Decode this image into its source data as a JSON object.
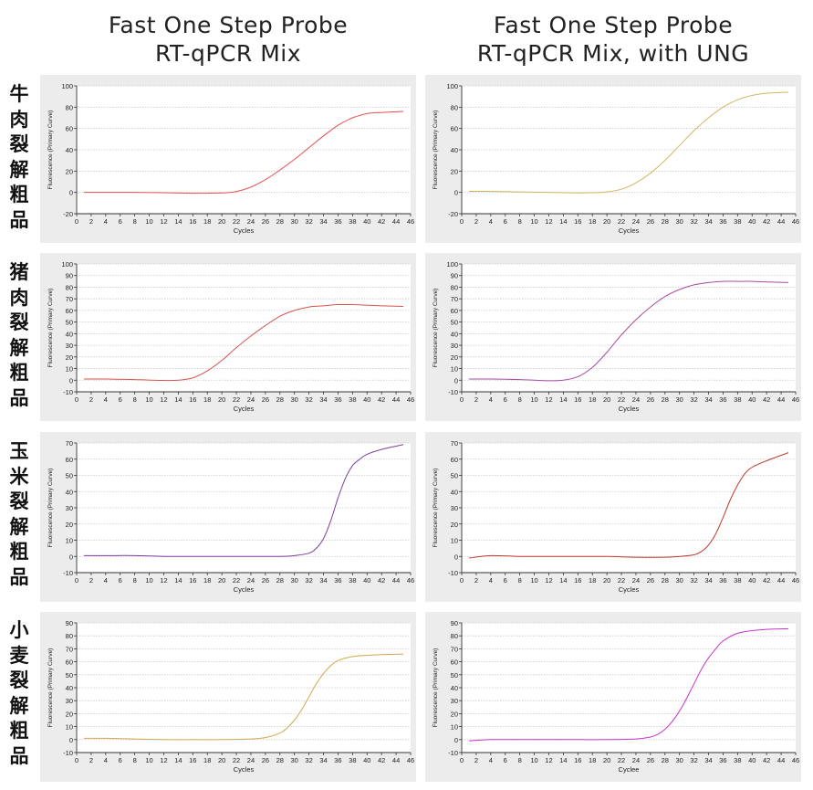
{
  "column_titles": [
    {
      "line1": "Fast One Step Probe",
      "line2": "RT-qPCR Mix"
    },
    {
      "line1": "Fast One Step Probe",
      "line2": "RT-qPCR Mix, with UNG"
    }
  ],
  "row_labels": [
    [
      "牛",
      "肉",
      "裂",
      "解",
      "粗",
      "品"
    ],
    [
      "猪",
      "肉",
      "裂",
      "解",
      "粗",
      "品"
    ],
    [
      "玉",
      "米",
      "裂",
      "解",
      "粗",
      "品"
    ],
    [
      "小",
      "麦",
      "裂",
      "解",
      "粗",
      "品"
    ]
  ],
  "chart_data": [
    {
      "type": "line",
      "row": 0,
      "col": 0,
      "xlabel": "Cycles",
      "ylabel": "Fluorescence (Primary Curve)",
      "xlim": [
        0,
        46
      ],
      "ylim": [
        -20,
        100
      ],
      "ystep": 20,
      "xticks": [
        0,
        2,
        4,
        6,
        8,
        10,
        12,
        14,
        16,
        18,
        20,
        22,
        24,
        26,
        28,
        30,
        32,
        34,
        36,
        38,
        40,
        42,
        44,
        46
      ],
      "grid_y": true,
      "color": "#e8504f",
      "series": [
        {
          "x": [
            1,
            4,
            8,
            12,
            16,
            20,
            22,
            24,
            26,
            28,
            30,
            32,
            34,
            36,
            38,
            40,
            42,
            45
          ],
          "y": [
            0,
            0,
            0,
            -0.3,
            -0.8,
            -0.5,
            0.8,
            5,
            12,
            21,
            31,
            42,
            53,
            63,
            70,
            74,
            75,
            76
          ]
        }
      ]
    },
    {
      "type": "line",
      "row": 0,
      "col": 1,
      "xlabel": "Cycles",
      "ylabel": "Fluorescence (Primary Curve)",
      "xlim": [
        0,
        46
      ],
      "ylim": [
        -20,
        100
      ],
      "ystep": 20,
      "xticks": [
        0,
        2,
        4,
        6,
        8,
        10,
        12,
        14,
        16,
        18,
        20,
        22,
        24,
        26,
        28,
        30,
        32,
        34,
        36,
        38,
        40,
        42,
        44,
        46
      ],
      "grid_y": true,
      "color": "#d7b463",
      "series": [
        {
          "x": [
            1,
            4,
            8,
            12,
            16,
            18,
            20,
            22,
            24,
            26,
            28,
            30,
            32,
            34,
            36,
            38,
            40,
            42,
            45
          ],
          "y": [
            1,
            1,
            0.5,
            0,
            -0.5,
            -0.3,
            0.5,
            3,
            9,
            18,
            30,
            44,
            58,
            70,
            80,
            87,
            91,
            93,
            94
          ]
        }
      ]
    },
    {
      "type": "line",
      "row": 1,
      "col": 0,
      "xlabel": "Cycles",
      "ylabel": "Fluorescence (Primary Curve)",
      "xlim": [
        0,
        46
      ],
      "ylim": [
        -10,
        100
      ],
      "ystep": 10,
      "xticks": [
        0,
        2,
        4,
        6,
        8,
        10,
        12,
        14,
        16,
        18,
        20,
        22,
        24,
        26,
        28,
        30,
        32,
        34,
        36,
        38,
        40,
        42,
        44,
        46
      ],
      "grid_y": true,
      "color": "#d9534f",
      "series": [
        {
          "x": [
            1,
            4,
            8,
            12,
            14,
            16,
            18,
            20,
            22,
            24,
            26,
            28,
            30,
            32,
            34,
            36,
            38,
            40,
            42,
            45
          ],
          "y": [
            1,
            1,
            0.5,
            -0.2,
            0,
            2,
            8,
            17,
            28,
            38,
            47,
            55,
            60,
            63,
            64,
            65,
            65,
            64.5,
            64,
            63.5
          ]
        }
      ]
    },
    {
      "type": "line",
      "row": 1,
      "col": 1,
      "xlabel": "Cycles",
      "ylabel": "Fluorescence (Primary Curve)",
      "xlim": [
        0,
        46
      ],
      "ylim": [
        -10,
        100
      ],
      "ystep": 10,
      "xticks": [
        0,
        2,
        4,
        6,
        8,
        10,
        12,
        14,
        16,
        18,
        20,
        22,
        24,
        26,
        28,
        30,
        32,
        34,
        36,
        38,
        40,
        42,
        44,
        46
      ],
      "grid_y": true,
      "color": "#a94ca3",
      "series": [
        {
          "x": [
            1,
            4,
            8,
            12,
            14,
            16,
            18,
            20,
            22,
            24,
            26,
            28,
            30,
            32,
            34,
            36,
            38,
            40,
            42,
            45
          ],
          "y": [
            1,
            1,
            0.5,
            -0.5,
            0,
            3,
            11,
            24,
            39,
            52,
            63,
            72,
            78,
            82,
            84,
            85,
            85,
            85,
            84.5,
            84
          ]
        }
      ]
    },
    {
      "type": "line",
      "row": 2,
      "col": 0,
      "xlabel": "Cycles",
      "ylabel": "Fluorescence (Primary Curve)",
      "xlim": [
        0,
        46
      ],
      "ylim": [
        -10,
        70
      ],
      "ystep": 10,
      "xticks": [
        0,
        2,
        4,
        6,
        8,
        10,
        12,
        14,
        16,
        18,
        20,
        22,
        24,
        26,
        28,
        30,
        32,
        34,
        36,
        38,
        40,
        42,
        44,
        46
      ],
      "grid_y": true,
      "color": "#7b3f9e",
      "series": [
        {
          "x": [
            1,
            4,
            8,
            12,
            16,
            20,
            24,
            28,
            30,
            32,
            33,
            34,
            35,
            36,
            37,
            38,
            39,
            40,
            42,
            45
          ],
          "y": [
            0.5,
            0.5,
            0.5,
            0,
            0,
            0,
            0,
            0,
            0.5,
            2,
            5,
            11,
            22,
            36,
            48,
            56,
            60,
            63,
            66,
            69
          ]
        }
      ]
    },
    {
      "type": "line",
      "row": 2,
      "col": 1,
      "xlabel": "Cycles",
      "ylabel": "Fluorescence (Primary Curve)",
      "xlim": [
        0,
        46
      ],
      "ylim": [
        -10,
        70
      ],
      "ystep": 10,
      "xticks": [
        0,
        2,
        4,
        6,
        8,
        10,
        12,
        14,
        16,
        18,
        20,
        22,
        24,
        26,
        28,
        30,
        32,
        34,
        36,
        38,
        40,
        42,
        44,
        46
      ],
      "grid_y": true,
      "color": "#c0392b",
      "series": [
        {
          "x": [
            1,
            4,
            8,
            12,
            16,
            20,
            24,
            28,
            30,
            32,
            33,
            34,
            35,
            36,
            37,
            38,
            39,
            40,
            42,
            45
          ],
          "y": [
            -1,
            0.5,
            0,
            0,
            0,
            0,
            -0.5,
            -0.5,
            0,
            1,
            3,
            7,
            14,
            24,
            35,
            44,
            51,
            55,
            59,
            64
          ]
        }
      ]
    },
    {
      "type": "line",
      "row": 3,
      "col": 0,
      "xlabel": "Cycles",
      "ylabel": "Fluorescence (Primary Curve)",
      "xlim": [
        0,
        46
      ],
      "ylim": [
        -10,
        90
      ],
      "ystep": 10,
      "xticks": [
        0,
        2,
        4,
        6,
        8,
        10,
        12,
        14,
        16,
        18,
        20,
        22,
        24,
        26,
        28,
        30,
        32,
        34,
        36,
        38,
        40,
        42,
        44,
        46
      ],
      "grid_y": true,
      "color": "#d2a84d",
      "series": [
        {
          "x": [
            1,
            4,
            8,
            12,
            16,
            20,
            24,
            26,
            28,
            29,
            30,
            31,
            32,
            33,
            34,
            35,
            36,
            38,
            40,
            42,
            45
          ],
          "y": [
            1,
            1,
            0.5,
            0,
            0,
            0,
            0.5,
            1.5,
            5,
            9,
            15,
            23,
            33,
            43,
            51,
            57,
            61,
            64,
            65,
            65.5,
            66
          ]
        }
      ]
    },
    {
      "type": "line",
      "row": 3,
      "col": 1,
      "xlabel": "Cyclee",
      "ylabel": "Fluorescence (Primary Curve)",
      "xlim": [
        0,
        46
      ],
      "ylim": [
        -10,
        90
      ],
      "ystep": 10,
      "xticks": [
        0,
        2,
        4,
        6,
        8,
        10,
        12,
        14,
        16,
        18,
        20,
        22,
        24,
        26,
        28,
        30,
        32,
        34,
        36,
        38,
        40,
        42,
        44,
        46
      ],
      "grid_y": true,
      "color": "#cc33cc",
      "series": [
        {
          "x": [
            1,
            4,
            8,
            12,
            16,
            20,
            24,
            26,
            27,
            28,
            29,
            30,
            31,
            32,
            33,
            34,
            35,
            36,
            38,
            40,
            42,
            45
          ],
          "y": [
            -1,
            0,
            0,
            0,
            0,
            0,
            0.5,
            2,
            4,
            8,
            14,
            22,
            32,
            43,
            54,
            63,
            70,
            76,
            82,
            84,
            85,
            85.5
          ]
        }
      ]
    }
  ]
}
